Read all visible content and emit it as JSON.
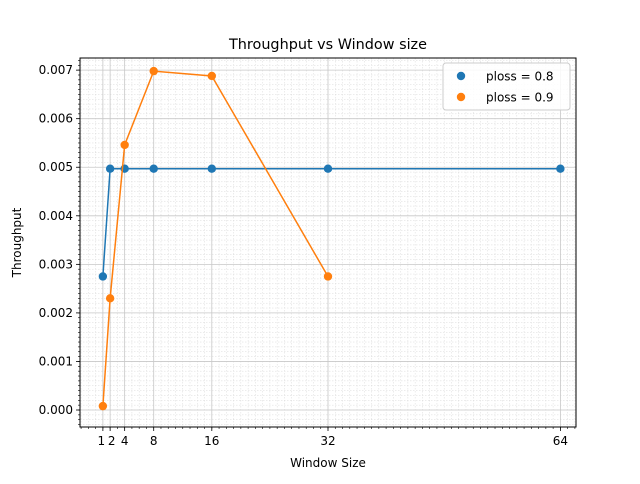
{
  "chart_data": {
    "type": "line",
    "title": "Throughput vs Window size",
    "xlabel": "Window Size",
    "ylabel": "Throughput",
    "xlim": [
      -2.15,
      66.15
    ],
    "ylim": [
      -0.00035,
      0.00725
    ],
    "xticks": [
      1,
      2,
      4,
      8,
      16,
      32,
      64
    ],
    "xtick_labels": [
      "1",
      "2",
      "4",
      "8",
      "16",
      "32",
      "64"
    ],
    "yticks": [
      0.0,
      0.001,
      0.002,
      0.003,
      0.004,
      0.005,
      0.006,
      0.007
    ],
    "ytick_labels": [
      "0.000",
      "0.001",
      "0.002",
      "0.003",
      "0.004",
      "0.005",
      "0.006",
      "0.007"
    ],
    "grid": true,
    "minor_grid": true,
    "legend_position": "top-right",
    "series": [
      {
        "name": "ploss = 0.8",
        "color": "#1f77b4",
        "x": [
          1,
          2,
          4,
          8,
          16,
          32,
          64
        ],
        "y": [
          0.00275,
          0.00497,
          0.00497,
          0.00497,
          0.00497,
          0.00497,
          0.00497
        ]
      },
      {
        "name": "ploss = 0.9",
        "color": "#ff7f0e",
        "x": [
          1,
          2,
          4,
          8,
          16,
          32
        ],
        "y": [
          8e-05,
          0.0023,
          0.00546,
          0.00698,
          0.00688,
          0.00275
        ]
      }
    ]
  }
}
